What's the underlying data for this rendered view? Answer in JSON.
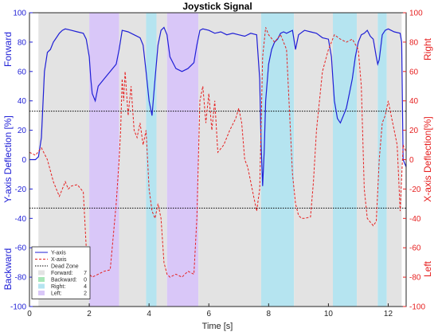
{
  "chart_data": {
    "type": "line",
    "title": "Joystick Signal",
    "xlabel": "Time [s]",
    "ylabel_left": "Y-axis Deflection [%]",
    "ylabel_right": "X-axis Deflection[%]",
    "left_side_labels": {
      "top": "Forward",
      "bottom": "Backward"
    },
    "right_side_labels": {
      "top": "Right",
      "bottom": "Left"
    },
    "xlim": [
      0,
      12.6
    ],
    "ylim_left": [
      -100,
      100
    ],
    "ylim_right": [
      -100,
      100
    ],
    "x_ticks": [
      0,
      2,
      4,
      6,
      8,
      10,
      12
    ],
    "y_ticks_left": [
      -100,
      -80,
      -60,
      -40,
      -20,
      0,
      20,
      40,
      60,
      80,
      100
    ],
    "y_ticks_right": [
      -100,
      -80,
      -60,
      -40,
      -20,
      0,
      20,
      40,
      60,
      80,
      100
    ],
    "dead_zone": [
      -33,
      33
    ],
    "regions": [
      {
        "type": "Forward",
        "start": 0.3,
        "end": 2.0
      },
      {
        "type": "Left",
        "start": 2.0,
        "end": 3.0
      },
      {
        "type": "Forward",
        "start": 3.0,
        "end": 3.9
      },
      {
        "type": "Right",
        "start": 3.9,
        "end": 4.25
      },
      {
        "type": "Forward",
        "start": 4.25,
        "end": 4.6
      },
      {
        "type": "Left",
        "start": 4.6,
        "end": 5.65
      },
      {
        "type": "Forward",
        "start": 5.65,
        "end": 7.75
      },
      {
        "type": "Right",
        "start": 7.75,
        "end": 8.85
      },
      {
        "type": "Forward",
        "start": 8.85,
        "end": 10.15
      },
      {
        "type": "Right",
        "start": 10.15,
        "end": 10.95
      },
      {
        "type": "Forward",
        "start": 10.95,
        "end": 11.65
      },
      {
        "type": "Right",
        "start": 11.65,
        "end": 11.95
      },
      {
        "type": "Forward",
        "start": 11.95,
        "end": 12.45
      }
    ],
    "region_colors": {
      "Forward": "#e3e3e3",
      "Backward": "#a8e6b8",
      "Right": "#b5e4f0",
      "Left": "#d9c7f8"
    },
    "series": [
      {
        "name": "Y-axis",
        "axis": "left",
        "color": "#1f1fd6",
        "style": "solid",
        "x": [
          0,
          0.2,
          0.3,
          0.4,
          0.5,
          0.6,
          0.7,
          0.8,
          0.9,
          1.0,
          1.1,
          1.2,
          1.4,
          1.6,
          1.8,
          1.9,
          2.0,
          2.05,
          2.1,
          2.2,
          2.3,
          2.5,
          2.7,
          2.9,
          3.0,
          3.1,
          3.3,
          3.5,
          3.7,
          3.8,
          3.9,
          4.0,
          4.1,
          4.2,
          4.3,
          4.4,
          4.5,
          4.6,
          4.7,
          4.9,
          5.1,
          5.3,
          5.5,
          5.6,
          5.7,
          5.8,
          6.0,
          6.2,
          6.4,
          6.6,
          6.8,
          7.0,
          7.2,
          7.4,
          7.6,
          7.7,
          7.75,
          7.8,
          7.85,
          7.9,
          8.0,
          8.1,
          8.2,
          8.3,
          8.4,
          8.5,
          8.6,
          8.8,
          8.9,
          9.0,
          9.2,
          9.4,
          9.6,
          9.8,
          10.0,
          10.1,
          10.15,
          10.2,
          10.3,
          10.4,
          10.5,
          10.6,
          10.7,
          10.8,
          10.9,
          11.0,
          11.1,
          11.2,
          11.3,
          11.4,
          11.5,
          11.6,
          11.65,
          11.7,
          11.8,
          11.9,
          12.0,
          12.2,
          12.4,
          12.45,
          12.5,
          12.6
        ],
        "y": [
          0,
          0,
          2,
          15,
          60,
          73,
          75,
          80,
          83,
          86,
          88,
          89,
          88,
          87,
          86,
          82,
          70,
          55,
          45,
          40,
          50,
          55,
          60,
          65,
          75,
          88,
          87,
          85,
          83,
          78,
          60,
          40,
          30,
          55,
          78,
          88,
          90,
          85,
          70,
          62,
          60,
          62,
          66,
          78,
          88,
          89,
          88,
          86,
          87,
          85,
          86,
          85,
          84,
          86,
          85,
          55,
          10,
          -18,
          5,
          40,
          65,
          75,
          80,
          82,
          86,
          87,
          86,
          88,
          75,
          85,
          88,
          87,
          86,
          83,
          82,
          70,
          55,
          40,
          28,
          25,
          30,
          35,
          45,
          55,
          70,
          80,
          85,
          86,
          88,
          84,
          82,
          70,
          65,
          68,
          85,
          88,
          89,
          87,
          86,
          80,
          0,
          -5
        ]
      },
      {
        "name": "X-axis",
        "axis": "right",
        "color": "#e62020",
        "style": "dashed",
        "x": [
          0,
          0.2,
          0.4,
          0.6,
          0.8,
          1.0,
          1.2,
          1.3,
          1.4,
          1.6,
          1.8,
          1.9,
          2.0,
          2.1,
          2.3,
          2.5,
          2.7,
          2.9,
          3.0,
          3.05,
          3.1,
          3.15,
          3.2,
          3.3,
          3.4,
          3.5,
          3.6,
          3.7,
          3.8,
          3.9,
          4.0,
          4.1,
          4.2,
          4.3,
          4.4,
          4.5,
          4.6,
          4.7,
          4.9,
          5.1,
          5.3,
          5.5,
          5.6,
          5.65,
          5.7,
          5.8,
          5.9,
          6.0,
          6.1,
          6.2,
          6.3,
          6.5,
          6.7,
          6.9,
          7.0,
          7.1,
          7.2,
          7.3,
          7.4,
          7.5,
          7.6,
          7.7,
          7.8,
          7.9,
          8.0,
          8.2,
          8.4,
          8.6,
          8.8,
          8.9,
          9.0,
          9.1,
          9.2,
          9.4,
          9.5,
          9.6,
          9.8,
          10.0,
          10.1,
          10.2,
          10.4,
          10.6,
          10.8,
          11.0,
          11.1,
          11.2,
          11.3,
          11.5,
          11.6,
          11.7,
          11.8,
          11.9,
          12.0,
          12.1,
          12.2,
          12.3,
          12.4,
          12.5,
          12.6
        ],
        "y": [
          5,
          3,
          8,
          0,
          -15,
          -25,
          -15,
          -20,
          -18,
          -17,
          -22,
          -60,
          -78,
          -80,
          -78,
          -76,
          -75,
          -30,
          0,
          20,
          55,
          40,
          60,
          30,
          50,
          20,
          15,
          25,
          10,
          20,
          -20,
          -35,
          -40,
          -30,
          -40,
          -70,
          -78,
          -80,
          -78,
          -80,
          -76,
          -78,
          -40,
          0,
          40,
          50,
          25,
          45,
          20,
          40,
          5,
          10,
          20,
          28,
          35,
          25,
          0,
          -5,
          -15,
          -25,
          -35,
          -20,
          70,
          90,
          85,
          80,
          85,
          75,
          -10,
          -30,
          -38,
          -40,
          -40,
          -39,
          -15,
          20,
          60,
          75,
          80,
          85,
          82,
          80,
          82,
          75,
          50,
          -20,
          -40,
          -45,
          -42,
          0,
          25,
          30,
          40,
          30,
          20,
          10,
          -35,
          10,
          5
        ]
      }
    ],
    "legend": {
      "position": "bottom-left",
      "entries": [
        {
          "label": "Y-axis"
        },
        {
          "label": "X-axis"
        },
        {
          "label": "Dead Zone"
        },
        {
          "label": "Forward:",
          "count": 7
        },
        {
          "label": "Backward:",
          "count": 0
        },
        {
          "label": "Right:",
          "count": 4
        },
        {
          "label": "Left:",
          "count": 2
        }
      ]
    }
  }
}
